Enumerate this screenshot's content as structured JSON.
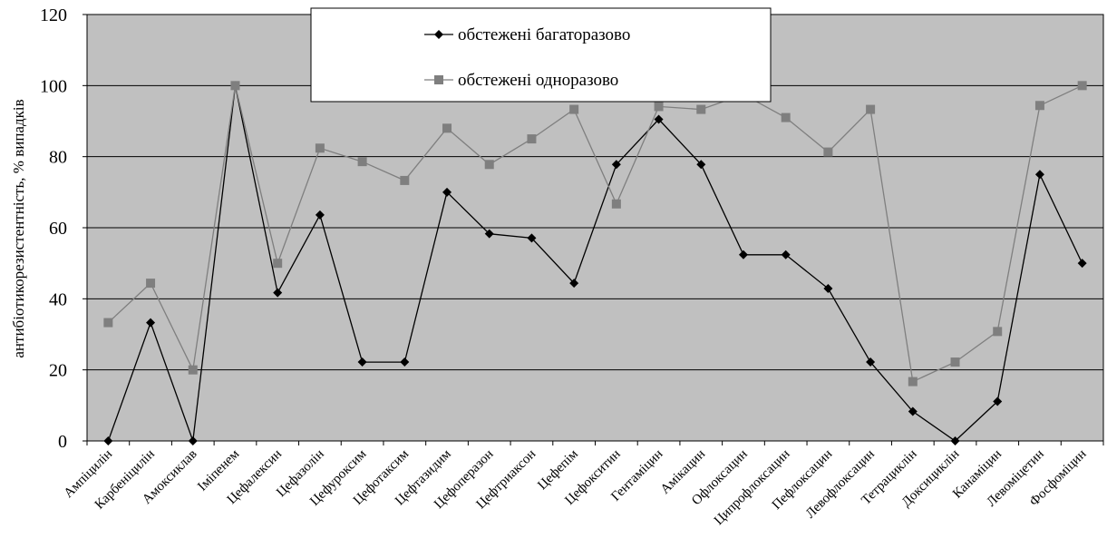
{
  "chart_data": {
    "type": "line",
    "title": "",
    "xlabel": "",
    "ylabel": "антибіотикорезистентність, % випадків",
    "ylim": [
      0,
      120
    ],
    "yticks": [
      0,
      20,
      40,
      60,
      80,
      100,
      120
    ],
    "grid": true,
    "legend_position": "top-center",
    "categories": [
      "Ампіцилін",
      "Карбеніцилін",
      "Амоксиклав",
      "Іміпенем",
      "Цефалексин",
      "Цефазолін",
      "Цефуроксим",
      "Цефотаксим",
      "Цефтазидим",
      "Цефоперазон",
      "Цефтриаксон",
      "Цефепім",
      "Цефокситин",
      "Гентаміцин",
      "Амікацин",
      "Офлоксацин",
      "Ципрофлоксацин",
      "Пефлоксацин",
      "Левофлоксацин",
      "Тетрациклін",
      "Доксициклін",
      "Канаміцин",
      "Левоміцетин",
      "Фосфоміцин"
    ],
    "series": [
      {
        "name": "обстежені багаторазово",
        "color": "#000000",
        "marker": "diamond",
        "values": [
          0,
          33.3,
          0,
          100,
          41.7,
          63.6,
          22.2,
          22.2,
          70,
          58.3,
          57.1,
          44.4,
          77.8,
          90.5,
          77.8,
          52.4,
          52.4,
          42.9,
          22.2,
          8.3,
          0,
          11.1,
          75,
          50
        ]
      },
      {
        "name": "обстежені одноразово",
        "color": "#7f7f7f",
        "marker": "square",
        "values": [
          33.3,
          44.4,
          20,
          100,
          50,
          82.4,
          78.6,
          73.3,
          88,
          77.8,
          85,
          93.3,
          66.7,
          94.1,
          93.3,
          97.5,
          91,
          81.3,
          93.3,
          16.7,
          22.2,
          30.8,
          94.4,
          100
        ]
      }
    ]
  }
}
